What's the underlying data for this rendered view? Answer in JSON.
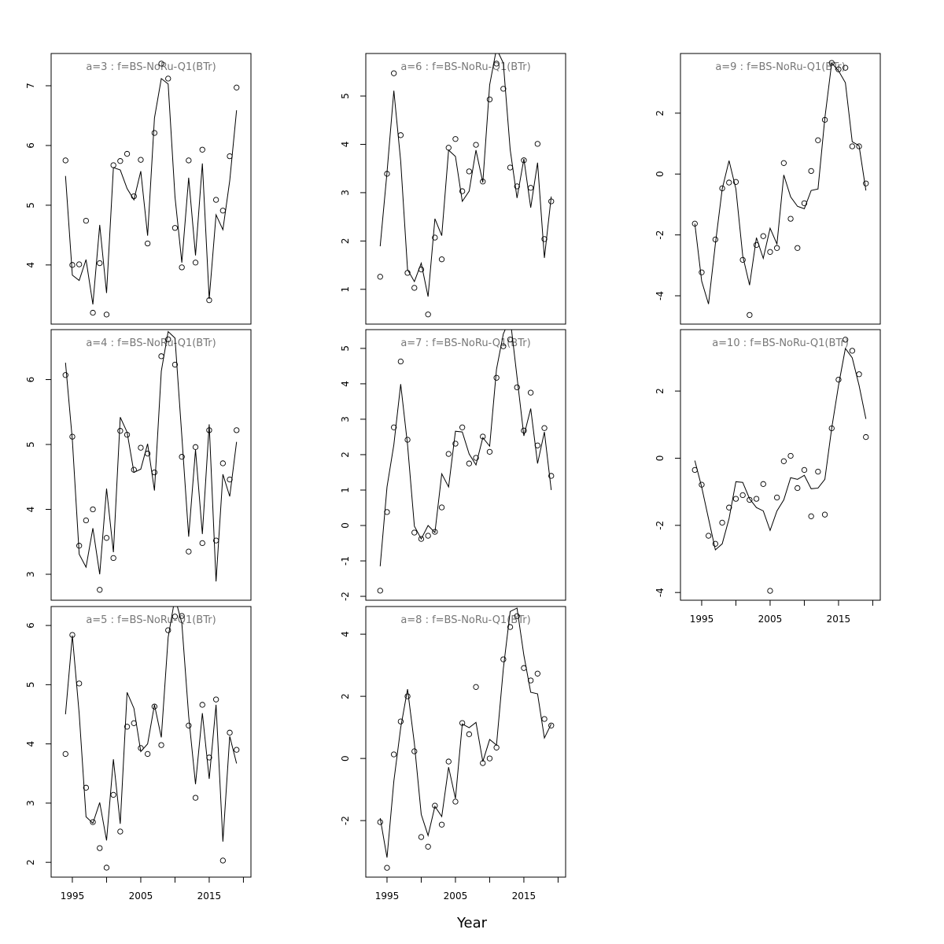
{
  "xlabel": "Year",
  "chart_data": [
    {
      "type": "line",
      "title": "a=3  :  f=BS-NoRu-Q1(BTr)",
      "x": [
        1994,
        1995,
        1996,
        1997,
        1998,
        1999,
        2000,
        2001,
        2002,
        2003,
        2004,
        2005,
        2006,
        2007,
        2008,
        2009,
        2010,
        2011,
        2012,
        2013,
        2014,
        2015,
        2016,
        2017,
        2018,
        2019
      ],
      "series": [
        {
          "style": "points",
          "color": "#000000",
          "values": [
            5.75,
            4.0,
            4.01,
            4.74,
            3.2,
            4.03,
            3.17,
            5.67,
            5.74,
            5.86,
            5.15,
            5.76,
            4.36,
            6.21,
            7.37,
            7.12,
            4.62,
            3.96,
            5.75,
            4.04,
            5.93,
            3.41,
            5.09,
            4.91,
            5.82,
            6.97
          ]
        },
        {
          "style": "line",
          "color": "#000000",
          "values": [
            5.49,
            3.83,
            3.74,
            4.09,
            3.34,
            4.67,
            3.53,
            5.63,
            5.59,
            5.28,
            5.09,
            5.57,
            4.49,
            6.46,
            7.12,
            7.03,
            5.14,
            4.04,
            5.46,
            4.16,
            5.7,
            3.43,
            4.84,
            4.59,
            5.41,
            6.59
          ]
        }
      ],
      "xlim": [
        1991.9,
        2021.1
      ],
      "ylim": [
        3.01,
        7.54
      ],
      "yticks": [
        4,
        5,
        6,
        7
      ]
    },
    {
      "type": "line",
      "title": "a=4  :  f=BS-NoRu-Q1(BTr)",
      "x": [
        1994,
        1995,
        1996,
        1997,
        1998,
        1999,
        2000,
        2001,
        2002,
        2003,
        2004,
        2005,
        2006,
        2007,
        2008,
        2009,
        2010,
        2011,
        2012,
        2013,
        2014,
        2015,
        2016,
        2017,
        2018,
        2019
      ],
      "series": [
        {
          "style": "points",
          "color": "#000000",
          "values": [
            6.07,
            5.12,
            3.44,
            3.83,
            4.0,
            2.76,
            3.56,
            3.25,
            5.21,
            5.15,
            4.61,
            4.95,
            4.86,
            4.57,
            6.36,
            6.62,
            6.23,
            4.81,
            3.35,
            4.96,
            3.48,
            5.22,
            3.52,
            4.71,
            4.46,
            5.22
          ]
        },
        {
          "style": "line",
          "color": "#000000",
          "values": [
            6.26,
            5.07,
            3.31,
            3.11,
            3.71,
            3.0,
            4.32,
            3.34,
            5.42,
            5.19,
            4.57,
            4.62,
            5.01,
            4.29,
            6.13,
            6.74,
            6.64,
            5.13,
            3.58,
            4.92,
            3.62,
            5.31,
            2.89,
            4.54,
            4.2,
            5.04
          ]
        }
      ],
      "xlim": [
        1991.9,
        2021.1
      ],
      "ylim": [
        2.6,
        6.77
      ],
      "yticks": [
        3,
        4,
        5,
        6
      ]
    },
    {
      "type": "line",
      "title": "a=5  :  f=BS-NoRu-Q1(BTr)",
      "x": [
        1994,
        1995,
        1996,
        1997,
        1998,
        1999,
        2000,
        2001,
        2002,
        2003,
        2004,
        2005,
        2006,
        2007,
        2008,
        2009,
        2010,
        2011,
        2012,
        2013,
        2014,
        2015,
        2016,
        2017,
        2018,
        2019
      ],
      "series": [
        {
          "style": "points",
          "color": "#000000",
          "values": [
            3.83,
            5.84,
            5.02,
            3.26,
            2.68,
            2.24,
            1.91,
            3.14,
            2.52,
            4.29,
            4.35,
            3.93,
            3.83,
            4.63,
            3.98,
            5.92,
            6.15,
            6.16,
            4.31,
            3.09,
            4.66,
            3.77,
            4.75,
            2.03,
            4.19,
            3.9
          ]
        },
        {
          "style": "line",
          "color": "#000000",
          "values": [
            4.5,
            5.83,
            4.51,
            2.77,
            2.66,
            3.01,
            2.37,
            3.74,
            2.65,
            4.87,
            4.6,
            3.87,
            4.0,
            4.66,
            4.11,
            5.8,
            6.47,
            6.04,
            4.47,
            3.32,
            4.52,
            3.41,
            4.66,
            2.35,
            4.13,
            3.67
          ]
        }
      ],
      "xlim": [
        1991.9,
        2021.1
      ],
      "ylim": [
        1.75,
        6.32
      ],
      "yticks": [
        2,
        3,
        4,
        5,
        6
      ],
      "xticks": [
        1995,
        2005,
        2015
      ],
      "xminorticks": [
        2000,
        2010,
        2020
      ]
    },
    {
      "type": "line",
      "title": "a=6  :  f=BS-NoRu-Q1(BTr)",
      "x": [
        1994,
        1995,
        1996,
        1997,
        1998,
        1999,
        2000,
        2001,
        2002,
        2003,
        2004,
        2005,
        2006,
        2007,
        2008,
        2009,
        2010,
        2011,
        2012,
        2013,
        2014,
        2015,
        2016,
        2017,
        2018,
        2019
      ],
      "series": [
        {
          "style": "points",
          "color": "#000000",
          "values": [
            1.26,
            3.39,
            5.47,
            4.19,
            1.34,
            1.03,
            1.41,
            0.48,
            2.07,
            1.62,
            3.93,
            4.11,
            3.03,
            3.44,
            3.99,
            3.23,
            4.93,
            5.67,
            5.15,
            3.52,
            3.13,
            3.67,
            3.1,
            4.01,
            2.04,
            2.82
          ]
        },
        {
          "style": "line",
          "color": "#000000",
          "values": [
            1.89,
            3.42,
            5.11,
            3.65,
            1.41,
            1.16,
            1.54,
            0.85,
            2.46,
            2.11,
            3.88,
            3.75,
            2.82,
            3.03,
            3.88,
            3.21,
            5.23,
            5.98,
            5.68,
            3.89,
            2.89,
            3.7,
            2.69,
            3.62,
            1.65,
            2.92
          ]
        }
      ],
      "xlim": [
        1991.9,
        2021.1
      ],
      "ylim": [
        0.28,
        5.88
      ],
      "yticks": [
        1,
        2,
        3,
        4,
        5
      ]
    },
    {
      "type": "line",
      "title": "a=7  :  f=BS-NoRu-Q1(BTr)",
      "x": [
        1994,
        1995,
        1996,
        1997,
        1998,
        1999,
        2000,
        2001,
        2002,
        2003,
        2004,
        2005,
        2006,
        2007,
        2008,
        2009,
        2010,
        2011,
        2012,
        2013,
        2014,
        2015,
        2016,
        2017,
        2018,
        2019
      ],
      "series": [
        {
          "style": "points",
          "color": "#000000",
          "values": [
            -1.84,
            0.38,
            2.77,
            4.63,
            2.42,
            -0.2,
            -0.38,
            -0.29,
            -0.18,
            0.51,
            2.02,
            2.31,
            2.77,
            1.75,
            1.91,
            2.51,
            2.08,
            4.17,
            5.06,
            5.25,
            3.9,
            2.68,
            3.75,
            2.26,
            2.75,
            1.4
          ]
        },
        {
          "style": "line",
          "color": "#000000",
          "values": [
            -1.15,
            1.09,
            2.28,
            3.99,
            2.28,
            -0.02,
            -0.38,
            0.0,
            -0.2,
            1.46,
            1.09,
            2.66,
            2.64,
            2.02,
            1.71,
            2.48,
            2.24,
            4.41,
            5.41,
            5.85,
            4.19,
            2.53,
            3.3,
            1.75,
            2.64,
            1.0
          ]
        }
      ],
      "xlim": [
        1991.9,
        2021.1
      ],
      "ylim": [
        -2.11,
        5.53
      ],
      "yticks": [
        -2,
        -1,
        0,
        1,
        2,
        3,
        4,
        5
      ]
    },
    {
      "type": "line",
      "title": "a=8  :  f=BS-NoRu-Q1(BTr)",
      "x": [
        1994,
        1995,
        1996,
        1997,
        1998,
        1999,
        2000,
        2001,
        2002,
        2003,
        2004,
        2005,
        2006,
        2007,
        2008,
        2009,
        2010,
        2011,
        2012,
        2013,
        2014,
        2015,
        2016,
        2017,
        2018,
        2019
      ],
      "series": [
        {
          "style": "points",
          "color": "#000000",
          "values": [
            -2.05,
            -3.52,
            0.13,
            1.19,
            2.0,
            0.23,
            -2.53,
            -2.84,
            -1.52,
            -2.13,
            -0.1,
            -1.39,
            1.14,
            0.78,
            2.3,
            -0.15,
            0.0,
            0.35,
            3.19,
            4.23,
            4.58,
            2.91,
            2.51,
            2.73,
            1.27,
            1.06
          ]
        },
        {
          "style": "line",
          "color": "#000000",
          "values": [
            -1.92,
            -3.19,
            -0.73,
            0.99,
            2.23,
            0.48,
            -1.8,
            -2.48,
            -1.54,
            -1.87,
            -0.28,
            -1.29,
            1.11,
            0.99,
            1.16,
            -0.1,
            0.61,
            0.43,
            2.89,
            4.73,
            4.84,
            3.32,
            2.13,
            2.08,
            0.66,
            1.11
          ]
        }
      ],
      "xlim": [
        1991.9,
        2021.1
      ],
      "ylim": [
        -3.82,
        4.89
      ],
      "yticks": [
        -2,
        0,
        2,
        4
      ],
      "xticks": [
        1995,
        2005,
        2015
      ],
      "xminorticks": [
        2000,
        2010,
        2020
      ]
    },
    {
      "type": "line",
      "title": "a=9  :  f=BS-NoRu-Q1(BTr)",
      "x": [
        1994,
        1995,
        1996,
        1997,
        1998,
        1999,
        2000,
        2001,
        2002,
        2003,
        2004,
        2005,
        2006,
        2007,
        2008,
        2009,
        2010,
        2011,
        2012,
        2013,
        2014,
        2015,
        2016,
        2017,
        2018,
        2019
      ],
      "series": [
        {
          "style": "points",
          "color": "#000000",
          "values": [
            -1.63,
            -3.23,
            null,
            -2.15,
            -0.47,
            -0.28,
            -0.26,
            -2.82,
            -4.63,
            -2.33,
            -2.04,
            -2.56,
            -2.43,
            0.36,
            -1.47,
            -2.43,
            -0.96,
            0.1,
            1.11,
            1.78,
            3.65,
            3.44,
            3.49,
            0.91,
            0.91,
            -0.31
          ]
        },
        {
          "style": "line",
          "color": "#000000",
          "values": [
            -1.63,
            -3.52,
            -4.27,
            -2.3,
            -0.49,
            0.44,
            -0.49,
            -2.69,
            -3.65,
            -2.09,
            -2.77,
            -1.78,
            -2.3,
            -0.03,
            -0.75,
            -1.06,
            -1.14,
            -0.54,
            -0.49,
            1.84,
            3.65,
            3.39,
            3.0,
            1.06,
            0.93,
            -0.54
          ]
        }
      ],
      "xlim": [
        1991.9,
        2021.1
      ],
      "ylim": [
        -4.93,
        3.96
      ],
      "yticks": [
        -4,
        -2,
        0,
        2
      ]
    },
    {
      "type": "line",
      "title": "a=10  :  f=BS-NoRu-Q1(BTr)",
      "x": [
        1994,
        1995,
        1996,
        1997,
        1998,
        1999,
        2000,
        2001,
        2002,
        2003,
        2004,
        2005,
        2006,
        2007,
        2008,
        2009,
        2010,
        2011,
        2012,
        2013,
        2014,
        2015,
        2016,
        2017,
        2018,
        2019
      ],
      "series": [
        {
          "style": "points",
          "color": "#000000",
          "values": [
            -0.35,
            -0.79,
            -2.31,
            -2.55,
            -1.92,
            -1.47,
            -1.21,
            -1.1,
            -1.24,
            -1.21,
            -0.77,
            -3.95,
            -1.17,
            -0.09,
            0.07,
            -0.89,
            -0.35,
            -1.73,
            -0.4,
            -1.68,
            0.89,
            2.34,
            3.53,
            3.2,
            2.5,
            0.63
          ]
        },
        {
          "style": "line",
          "color": "#000000",
          "values": [
            -0.07,
            -0.86,
            -1.8,
            -2.73,
            -2.55,
            -1.8,
            -0.7,
            -0.72,
            -1.21,
            -1.47,
            -1.57,
            -2.15,
            -1.57,
            -1.24,
            -0.58,
            -0.63,
            -0.51,
            -0.91,
            -0.89,
            -0.63,
            0.89,
            2.17,
            3.27,
            2.99,
            2.17,
            1.17
          ]
        }
      ],
      "xlim": [
        1991.9,
        2021.1
      ],
      "ylim": [
        -4.23,
        3.83
      ],
      "yticks": [
        -4,
        -2,
        0,
        2
      ],
      "xticks": [
        1995,
        2005,
        2015
      ],
      "xminorticks": [
        2000,
        2010,
        2020
      ]
    }
  ]
}
